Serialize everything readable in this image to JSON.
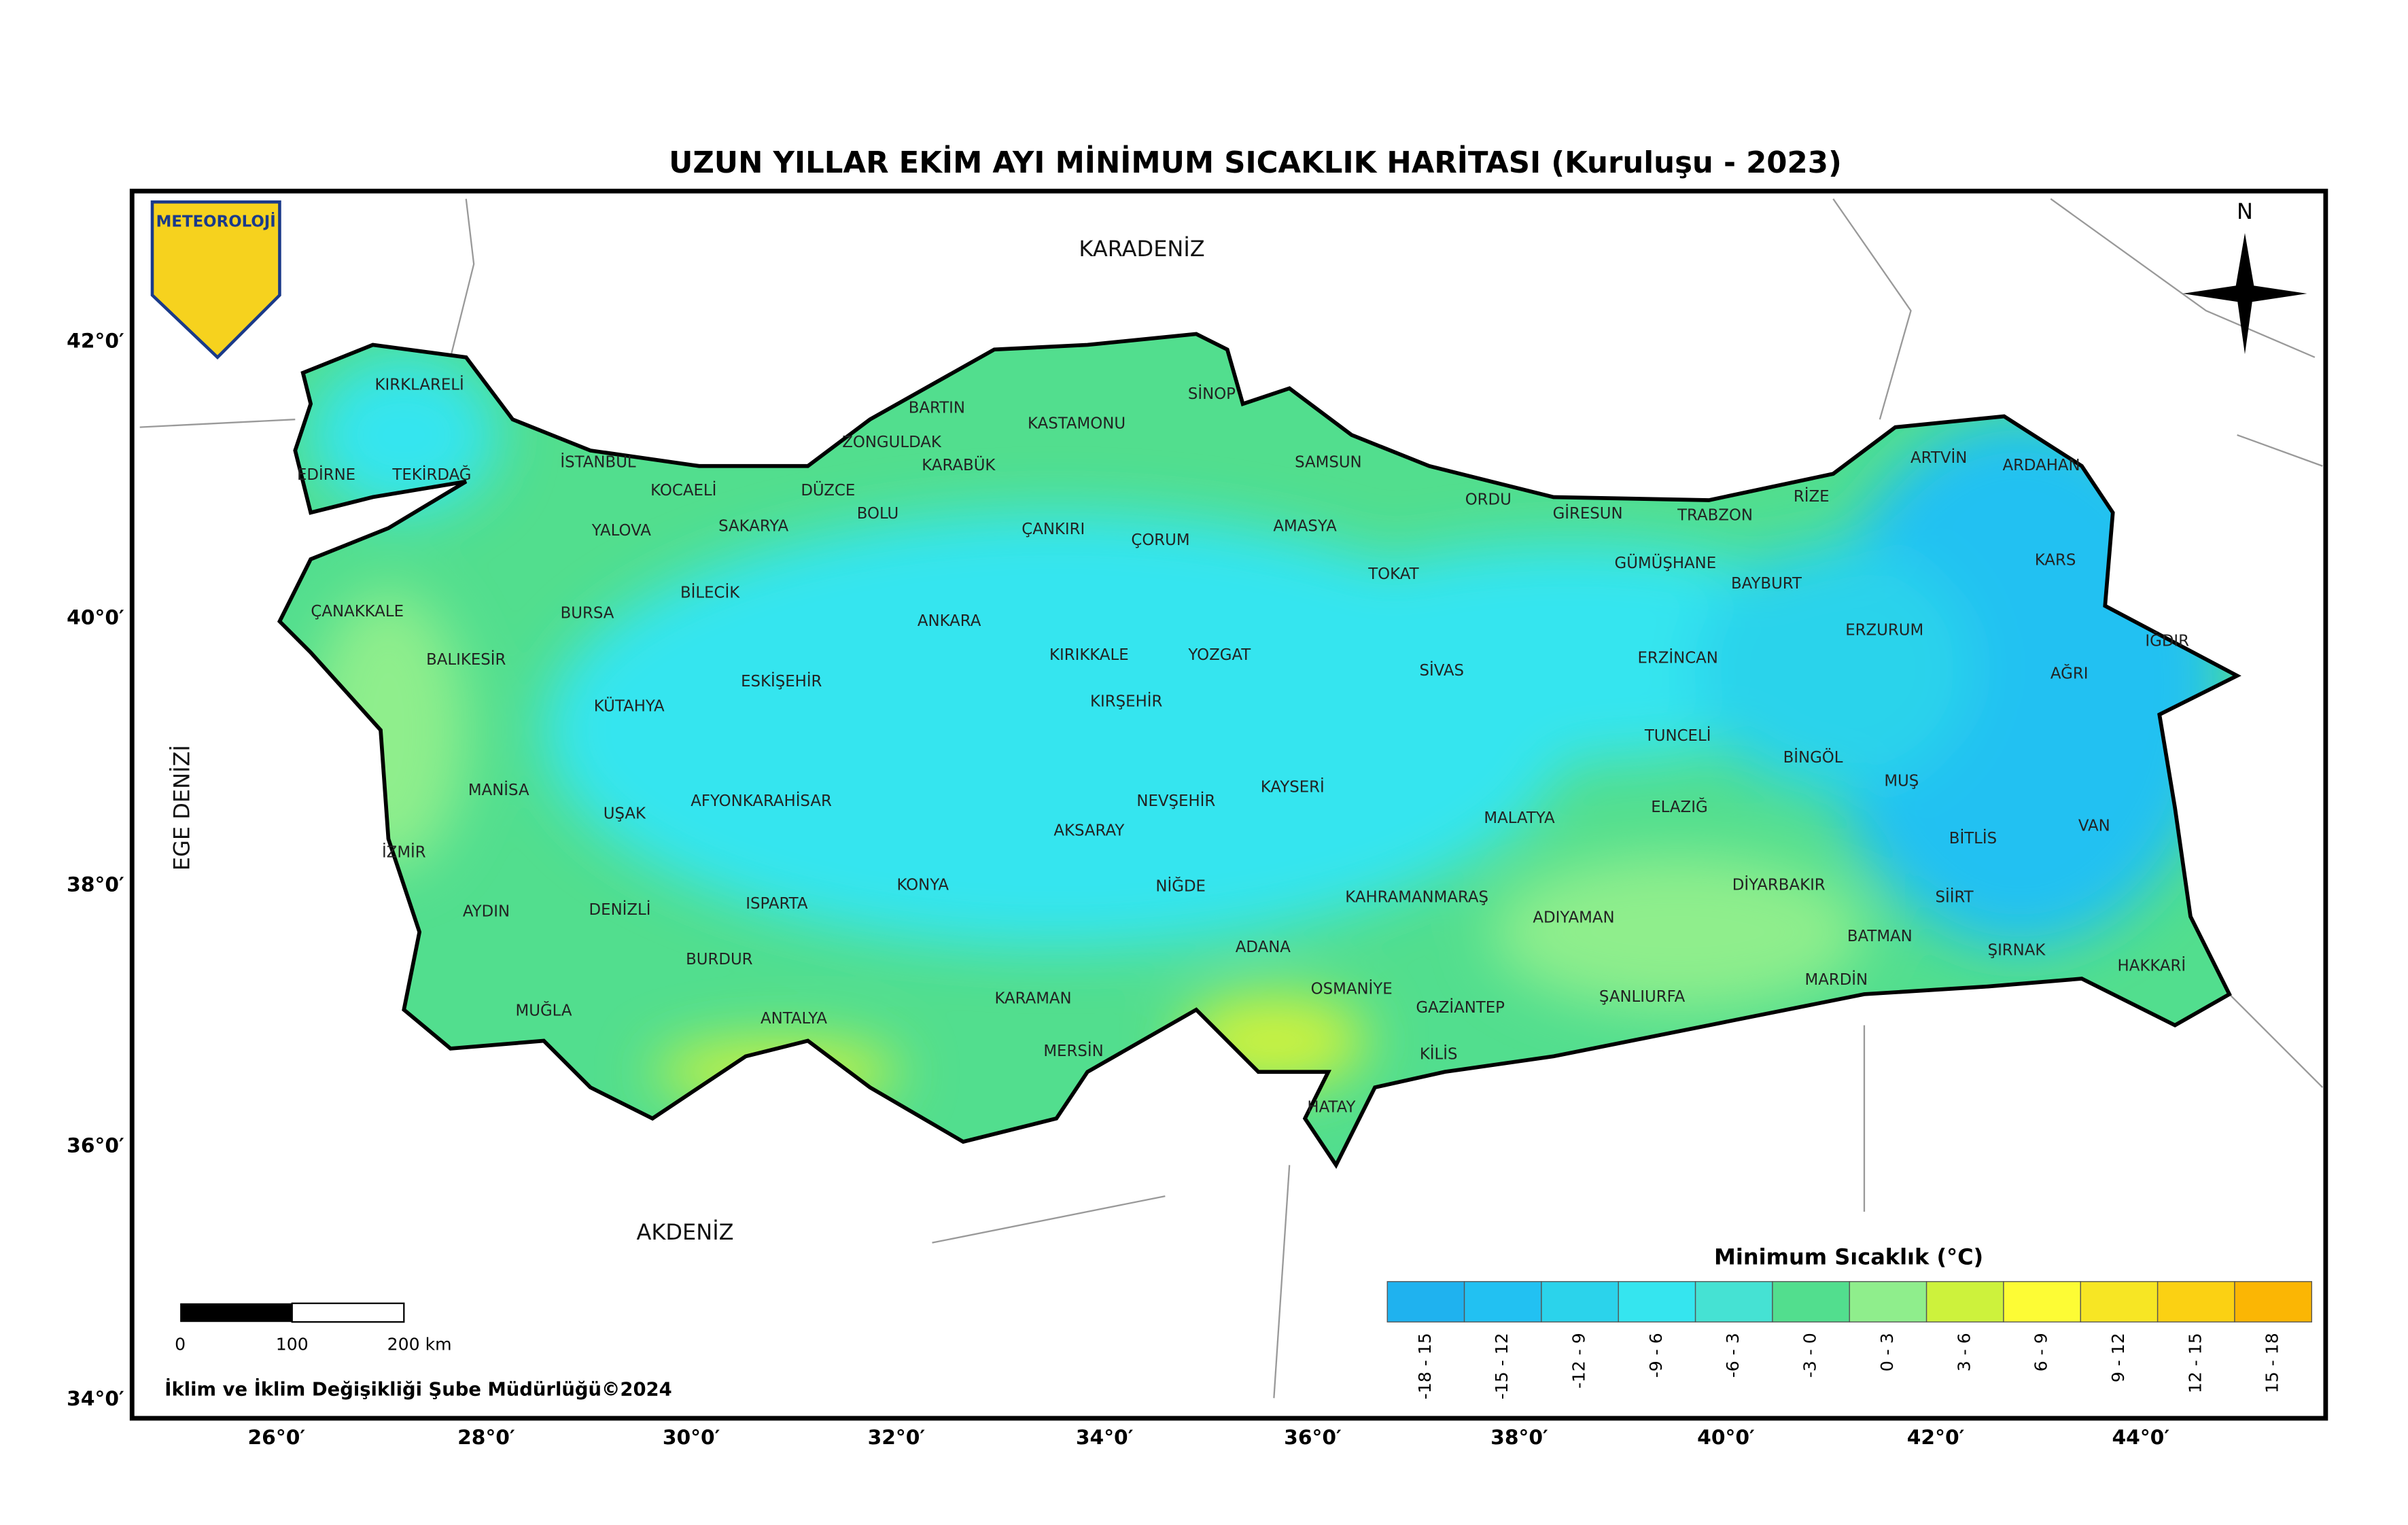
{
  "title": "UZUN YILLAR EKİM AYI MİNİMUM SICAKLIK HARİTASI (Kuruluşu - 2023)",
  "logo": "METEOROLOJİ",
  "north": "N",
  "seas": [
    "KARADENİZ",
    "AKDENİZ",
    "EGE DENİZİ"
  ],
  "provinces": [
    "KIRKLARELİ",
    "EDİRNE",
    "TEKİRDAĞ",
    "İSTANBUL",
    "KOCAELİ",
    "YALOVA",
    "SAKARYA",
    "DÜZCE",
    "ZONGULDAK",
    "BARTIN",
    "KARABÜK",
    "BOLU",
    "KASTAMONU",
    "SİNOP",
    "SAMSUN",
    "AMASYA",
    "ÇORUM",
    "ÇANKIRI",
    "ORDU",
    "GİRESUN",
    "TRABZON",
    "RİZE",
    "ARTVİN",
    "ARDAHAN",
    "KARS",
    "IĞDIR",
    "AĞRI",
    "ERZURUM",
    "BAYBURT",
    "GÜMÜŞHANE",
    "ERZİNCAN",
    "TOKAT",
    "SİVAS",
    "YOZGAT",
    "KIRIKKALE",
    "KIRŞEHİR",
    "ANKARA",
    "ÇANAKKALE",
    "BALIKESİR",
    "BURSA",
    "BİLECİK",
    "ESKİŞEHİR",
    "KÜTAHYA",
    "MANİSA",
    "UŞAK",
    "AFYONKARAHİSAR",
    "İZMİR",
    "AYDIN",
    "DENİZLİ",
    "ISPARTA",
    "BURDUR",
    "MUĞLA",
    "ANTALYA",
    "KONYA",
    "AKSARAY",
    "NEVŞEHİR",
    "KAYSERİ",
    "NİĞDE",
    "KARAMAN",
    "MERSİN",
    "ADANA",
    "OSMANİYE",
    "HATAY",
    "KİLİS",
    "GAZİANTEP",
    "KAHRAMANMARAŞ",
    "ADIYAMAN",
    "MALATYA",
    "TUNCELİ",
    "ELAZIĞ",
    "BİNGÖL",
    "MUŞ",
    "BİTLİS",
    "VAN",
    "DİYARBAKIR",
    "BATMAN",
    "SİİRT",
    "ŞIRNAK",
    "HAKKARİ",
    "MARDİN",
    "ŞANLIURFA"
  ],
  "latitude_labels": [
    "42°0′",
    "40°0′",
    "38°0′",
    "36°0′",
    "34°0′"
  ],
  "longitude_labels": [
    "26°0′",
    "28°0′",
    "30°0′",
    "32°0′",
    "34°0′",
    "36°0′",
    "38°0′",
    "40°0′",
    "42°0′",
    "44°0′"
  ],
  "legend": {
    "title": "Minimum Sıcaklık (°C)",
    "items": [
      {
        "label": "-18 - 15",
        "color": "#1fb2ef"
      },
      {
        "label": "-15 - 12",
        "color": "#22c1f2"
      },
      {
        "label": "-12 - 9",
        "color": "#2bd3eb"
      },
      {
        "label": "-9 - 6",
        "color": "#35e5ef"
      },
      {
        "label": "-6 - 3",
        "color": "#45e2d3"
      },
      {
        "label": "-3 - 0",
        "color": "#52de8e"
      },
      {
        "label": "0 - 3",
        "color": "#8fee8c"
      },
      {
        "label": "3 - 6",
        "color": "#cdf23c"
      },
      {
        "label": "6 - 9",
        "color": "#fdfc35"
      },
      {
        "label": "9 - 12",
        "color": "#f7e624"
      },
      {
        "label": "12 - 15",
        "color": "#fbd113"
      },
      {
        "label": "15 - 18",
        "color": "#fbb604"
      }
    ]
  },
  "scale_bar": [
    "0",
    "100",
    "200 km"
  ],
  "footer": "İklim ve İklim Değişikliği Şube Müdürlüğü©2024"
}
